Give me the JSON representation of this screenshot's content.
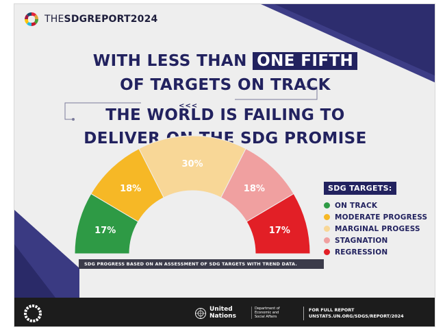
{
  "header": {
    "brand_prefix": "THE",
    "brand_mid": "SDG",
    "brand_suffix": "REPORT2024"
  },
  "headline": {
    "line1_pre": "WITH LESS THAN ",
    "line1_highlight": "ONE FIFTH",
    "line2": "OF TARGETS ON TRACK",
    "chevrons": "<<<",
    "line3": "THE WORLD IS FAILING TO",
    "line4": "DELIVER ON THE SDG PROMISE"
  },
  "chart_data": {
    "type": "pie",
    "layout": "semicircle-gauge",
    "categories": [
      "ON TRACK",
      "MODERATE PROGRESS",
      "MARGINAL PROGESS",
      "STAGNATION",
      "REGRESSION"
    ],
    "values": [
      17,
      18,
      30,
      18,
      17
    ],
    "value_labels": [
      "17%",
      "18%",
      "30%",
      "18%",
      "17%"
    ],
    "colors": [
      "#2e9a45",
      "#f6b826",
      "#f8d797",
      "#f0a0a0",
      "#e21f26"
    ],
    "legend_title": "SDG TARGETS:",
    "legend_position": "right",
    "note": "SDG PROGRESS BASED ON AN ASSESSMENT OF SDG TARGETS WITH TREND DATA."
  },
  "footer": {
    "un_line1": "United",
    "un_line2": "Nations",
    "desa_line1": "Department of",
    "desa_line2": "Economic and",
    "desa_line3": "Social Affairs",
    "report_line1": "FOR FULL REPORT",
    "report_line2": "UNSTATS.UN.ORG/SDGS/REPORT/2024"
  }
}
